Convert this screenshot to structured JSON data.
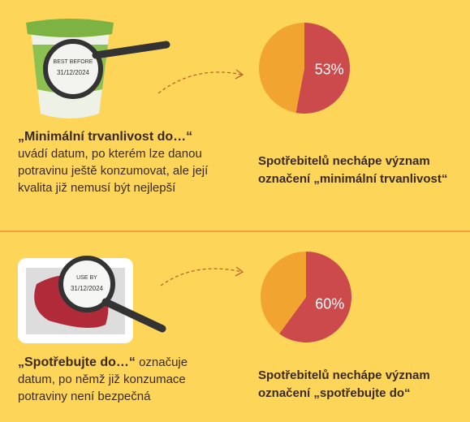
{
  "chart_data": [
    {
      "type": "pie",
      "values": [
        53,
        47
      ],
      "value_labels": [
        "53%",
        null
      ],
      "colors": [
        "#cc4a4c",
        "#f2a431"
      ],
      "caption": "Spotřebitelů nechápe význam označení „minimální trvanlivost“"
    },
    {
      "type": "pie",
      "values": [
        60,
        40
      ],
      "value_labels": [
        "60%",
        null
      ],
      "colors": [
        "#cc4a4c",
        "#f2a431"
      ],
      "caption": "Spotřebitelů nechápe význam označení „spotřebujte do“"
    }
  ],
  "sections": [
    {
      "label": "BEST BEFORE",
      "date": "31/12/2024",
      "title": "„Minimální trvanlivost do…“",
      "text": "uvádí datum, po kterém lze danou potravinu ještě konzumovat, ale její kvalita již nemusí být nejlepší"
    },
    {
      "label": "USE BY",
      "date": "31/12/2024",
      "title": "„Spotřebujte do…“",
      "text": "označuje datum, po němž již konzumace potraviny není bezpečná"
    }
  ]
}
